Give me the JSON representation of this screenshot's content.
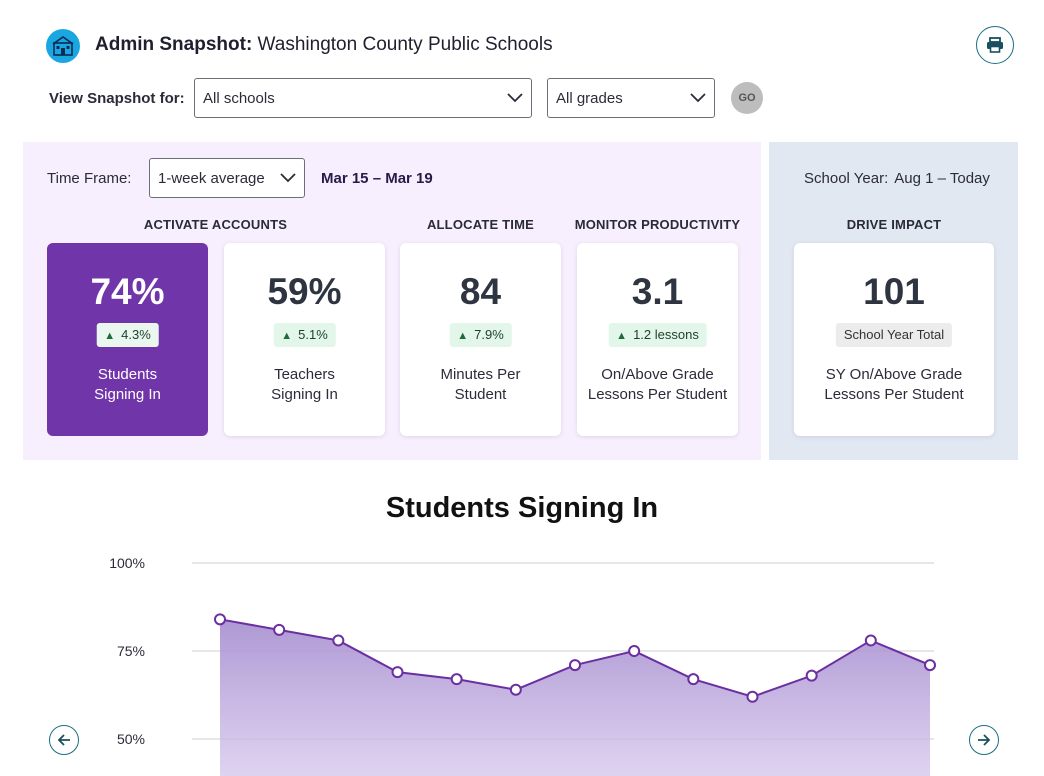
{
  "header": {
    "title_bold": "Admin Snapshot:",
    "title_rest": " Washington County Public Schools"
  },
  "filters": {
    "label": "View Snapshot for:",
    "school_select": "All schools",
    "grade_select": "All grades",
    "go_label": "GO"
  },
  "timeframe": {
    "label": "Time Frame:",
    "select": "1-week average",
    "range": "Mar 15 – Mar 19"
  },
  "school_year": {
    "label": "School Year:",
    "value": "Aug 1 – Today"
  },
  "sections": {
    "activate": "ACTIVATE ACCOUNTS",
    "allocate": "ALLOCATE TIME",
    "monitor": "MONITOR PRODUCTIVITY",
    "drive": "DRIVE IMPACT"
  },
  "cards": [
    {
      "metric": "74%",
      "delta": "4.3%",
      "label_1": "Students",
      "label_2": "Signing In"
    },
    {
      "metric": "59%",
      "delta": "5.1%",
      "label_1": "Teachers",
      "label_2": "Signing In"
    },
    {
      "metric": "84",
      "delta": "7.9%",
      "label_1": "Minutes Per",
      "label_2": "Student"
    },
    {
      "metric": "3.1",
      "delta": "1.2 lessons",
      "label_1": "On/Above Grade",
      "label_2": "Lessons Per Student"
    },
    {
      "metric": "101",
      "delta": "School Year Total",
      "label_1": "SY On/Above Grade",
      "label_2": "Lessons Per Student"
    }
  ],
  "colors": {
    "accent_purple": "#7035a8",
    "panel_purple": "#f7effd",
    "panel_blue": "#e2e8f2",
    "teal": "#1a6f84",
    "line": "#6a2fa0"
  },
  "chart_data": {
    "type": "area",
    "title": "Students Signing In",
    "ytick_labels": [
      "100%",
      "75%",
      "50%"
    ],
    "ylim": [
      42,
      100
    ],
    "yticks": [
      100,
      75,
      50
    ],
    "values": [
      84,
      81,
      78,
      69,
      67,
      64,
      71,
      75,
      67,
      62,
      68,
      78,
      71
    ],
    "grid": true
  }
}
